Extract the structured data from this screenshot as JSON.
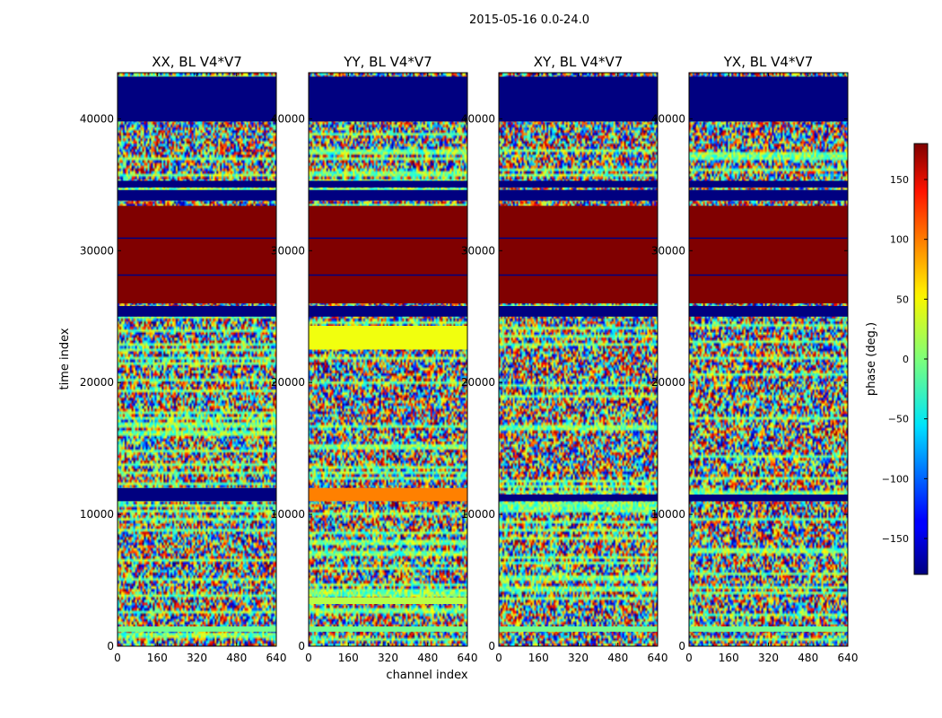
{
  "figure": {
    "suptitle": "2015-05-16 0.0-24.0",
    "xlabel": "channel index",
    "ylabel": "time index"
  },
  "chart_data": {
    "type": "heatmap",
    "xlim": [
      0,
      640
    ],
    "ylim": [
      0,
      43500
    ],
    "x_ticks": [
      0,
      160,
      320,
      480,
      640
    ],
    "y_ticks": [
      0,
      10000,
      20000,
      30000,
      40000
    ],
    "colorscale": "jet",
    "colorbar": {
      "label": "phase (deg.)",
      "range": [
        -180,
        180
      ],
      "ticks": [
        -150,
        -100,
        -50,
        0,
        50,
        100,
        150
      ],
      "tick_labels": [
        "−150",
        "−100",
        "−50",
        "0",
        "50",
        "100",
        "150"
      ]
    },
    "panels": [
      {
        "title": "XX, BL V4*V7",
        "bands": [
          {
            "from": 39800,
            "to": 43200,
            "phase": -180
          },
          {
            "from": 34800,
            "to": 35300,
            "phase": -180
          },
          {
            "from": 33800,
            "to": 34600,
            "phase": -180
          },
          {
            "from": 26000,
            "to": 33400,
            "phase": 180
          },
          {
            "from": 25000,
            "to": 25800,
            "phase": -180
          },
          {
            "from": 11000,
            "to": 12000,
            "phase": -180
          },
          {
            "from": 1100,
            "to": 1500,
            "phase": -5
          }
        ]
      },
      {
        "title": "YY, BL V4*V7",
        "bands": [
          {
            "from": 39800,
            "to": 43200,
            "phase": -180
          },
          {
            "from": 34800,
            "to": 35300,
            "phase": -180
          },
          {
            "from": 33800,
            "to": 34600,
            "phase": -180
          },
          {
            "from": 26000,
            "to": 33400,
            "phase": 180
          },
          {
            "from": 25000,
            "to": 25800,
            "phase": -180
          },
          {
            "from": 22500,
            "to": 24300,
            "phase": 40
          },
          {
            "from": 11000,
            "to": 12000,
            "phase": 90
          },
          {
            "from": 3200,
            "to": 3700,
            "phase": 20
          },
          {
            "from": 1100,
            "to": 1500,
            "phase": -5
          }
        ]
      },
      {
        "title": "XY, BL V4*V7",
        "bands": [
          {
            "from": 39800,
            "to": 43200,
            "phase": -180
          },
          {
            "from": 34800,
            "to": 35300,
            "phase": -180
          },
          {
            "from": 33800,
            "to": 34600,
            "phase": -180
          },
          {
            "from": 26000,
            "to": 33400,
            "phase": 180
          },
          {
            "from": 25000,
            "to": 25800,
            "phase": -180
          },
          {
            "from": 11000,
            "to": 11500,
            "phase": -180
          },
          {
            "from": 1100,
            "to": 1500,
            "phase": -5
          }
        ]
      },
      {
        "title": "YX, BL V4*V7",
        "bands": [
          {
            "from": 39800,
            "to": 43200,
            "phase": -180
          },
          {
            "from": 34800,
            "to": 35300,
            "phase": -180
          },
          {
            "from": 33800,
            "to": 34600,
            "phase": -180
          },
          {
            "from": 26000,
            "to": 33400,
            "phase": 180
          },
          {
            "from": 25000,
            "to": 25800,
            "phase": -180
          },
          {
            "from": 11000,
            "to": 11500,
            "phase": -180
          },
          {
            "from": 1100,
            "to": 1500,
            "phase": -5
          }
        ]
      }
    ]
  }
}
